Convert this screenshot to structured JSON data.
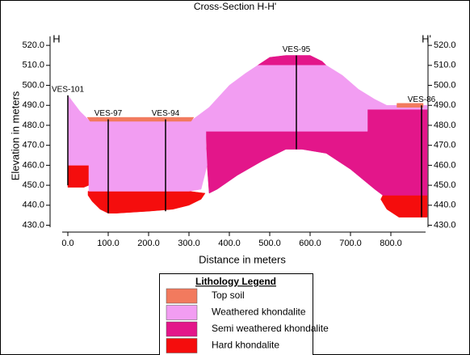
{
  "chart_data": {
    "type": "cross-section",
    "title": "Cross-Section H-H'",
    "x_label": "Distance in meters",
    "y_label": "Elevation in meters",
    "left_marker": "H",
    "right_marker": "H'",
    "xlim": [
      -12,
      888
    ],
    "ylim": [
      429,
      524.5
    ],
    "xticks": [
      {
        "value": 0,
        "label": "0.0"
      },
      {
        "value": 100,
        "label": "100.0"
      },
      {
        "value": 200,
        "label": "200.0"
      },
      {
        "value": 300,
        "label": "300.0"
      },
      {
        "value": 400,
        "label": "400.0"
      },
      {
        "value": 500,
        "label": "500.0"
      },
      {
        "value": 600,
        "label": "600.0"
      },
      {
        "value": 700,
        "label": "700.0"
      },
      {
        "value": 800,
        "label": "800.0"
      }
    ],
    "yticks": [
      {
        "value": 430,
        "label": "430.0"
      },
      {
        "value": 440,
        "label": "440.0"
      },
      {
        "value": 450,
        "label": "450.0"
      },
      {
        "value": 460,
        "label": "460.0"
      },
      {
        "value": 470,
        "label": "470.0"
      },
      {
        "value": 480,
        "label": "480.0"
      },
      {
        "value": 490,
        "label": "490.0"
      },
      {
        "value": 500,
        "label": "500.0"
      },
      {
        "value": 510,
        "label": "510.0"
      },
      {
        "value": 520,
        "label": "520.0"
      }
    ],
    "legend_title": "Lithology Legend",
    "layers": [
      {
        "name": "Top soil",
        "color": "#f27a5e",
        "x": [
          48,
          312,
          305,
          55,
          null,
          815,
          880,
          880,
          815
        ],
        "y": [
          484,
          484,
          482,
          482,
          null,
          491,
          491,
          489,
          489
        ]
      },
      {
        "name": "Weathered khondalite",
        "color": "#f29df2",
        "x": [
          0,
          30,
          50,
          310,
          350,
          400,
          440,
          470,
          640,
          680,
          720,
          760,
          790,
          890,
          890,
          742,
          742,
          342,
          342,
          345,
          330,
          300,
          52,
          52,
          0
        ],
        "y": [
          495,
          487,
          483,
          483,
          489,
          500,
          506,
          510,
          510,
          505,
          498,
          493,
          490,
          490,
          488,
          488,
          477,
          477,
          470,
          460,
          448,
          447,
          447,
          460,
          460
        ]
      },
      {
        "name": "Semi weathered khondalite",
        "color": "#e3168a",
        "x": [
          470,
          500,
          540,
          600,
          630,
          640,
          null,
          342,
          742,
          742,
          890,
          890,
          780,
          760,
          700,
          640,
          580,
          540,
          480,
          420,
          370,
          350,
          345
        ],
        "y": [
          510,
          514,
          515,
          515,
          512,
          510,
          null,
          477,
          477,
          488,
          488,
          445,
          445,
          448,
          458,
          466,
          468,
          468,
          462,
          455,
          448,
          446,
          460
        ]
      },
      {
        "name": "Hard khondalite",
        "color": "#f50d0d",
        "x": [
          0,
          52,
          52,
          40,
          0,
          null,
          50,
          300,
          340,
          330,
          300,
          260,
          200,
          120,
          100,
          80,
          60,
          50,
          null,
          780,
          890,
          890,
          820,
          790,
          775
        ],
        "y": [
          460,
          460,
          450,
          449,
          449,
          null,
          447,
          447,
          446,
          443,
          440,
          438,
          437,
          436,
          436,
          438,
          442,
          445,
          null,
          445,
          445,
          434,
          434,
          438,
          443
        ]
      }
    ],
    "boreholes": [
      {
        "name": "VES-101",
        "x": 0,
        "top": 495,
        "bottom": 450
      },
      {
        "name": "VES-97",
        "x": 100,
        "top": 483,
        "bottom": 436
      },
      {
        "name": "VES-94",
        "x": 242,
        "top": 483,
        "bottom": 437
      },
      {
        "name": "VES-95",
        "x": 566,
        "top": 515,
        "bottom": 468
      },
      {
        "name": "VES-86",
        "x": 876,
        "top": 490,
        "bottom": 434
      }
    ]
  }
}
